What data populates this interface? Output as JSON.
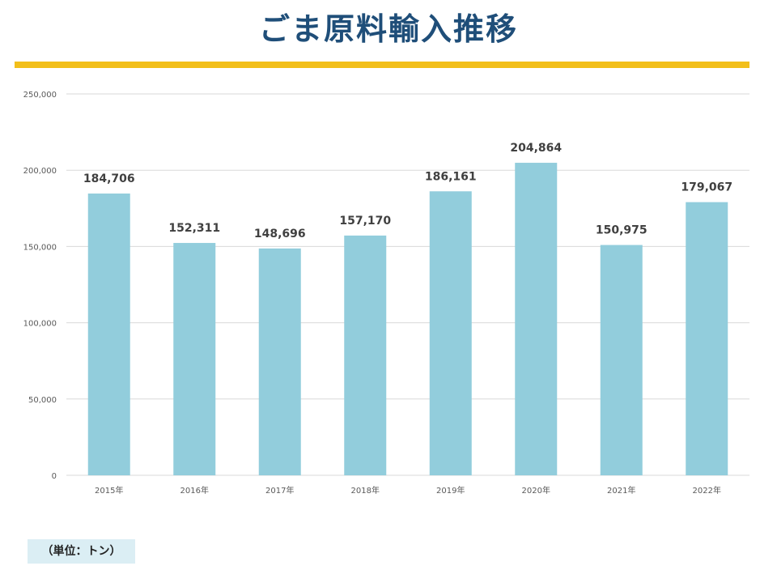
{
  "title": "ごま原料輸入推移",
  "colors": {
    "title": "#1f4e79",
    "accent_rule": "#f2bf1a",
    "bar": "#92cddc",
    "grid": "#d9d9d9",
    "axis_text": "#595959",
    "data_label": "#404040",
    "unit_note_bg": "#dbeef4"
  },
  "unit_note": "（単位：トン）",
  "chart_data": {
    "type": "bar",
    "title": "",
    "xlabel": "",
    "ylabel": "",
    "categories": [
      "2015年",
      "2016年",
      "2017年",
      "2018年",
      "2019年",
      "2020年",
      "2021年",
      "2022年"
    ],
    "values": [
      184706,
      152311,
      148696,
      157170,
      186161,
      204864,
      150975,
      179067
    ],
    "value_labels": [
      "184,706",
      "152,311",
      "148,696",
      "157,170",
      "186,161",
      "204,864",
      "150,975",
      "179,067"
    ],
    "ylim": [
      0,
      250000
    ],
    "y_ticks": [
      0,
      50000,
      100000,
      150000,
      200000,
      250000
    ],
    "y_tick_labels": [
      "0",
      "50,000",
      "100,000",
      "150,000",
      "200,000",
      "250,000"
    ],
    "grid": true,
    "legend": "none"
  }
}
